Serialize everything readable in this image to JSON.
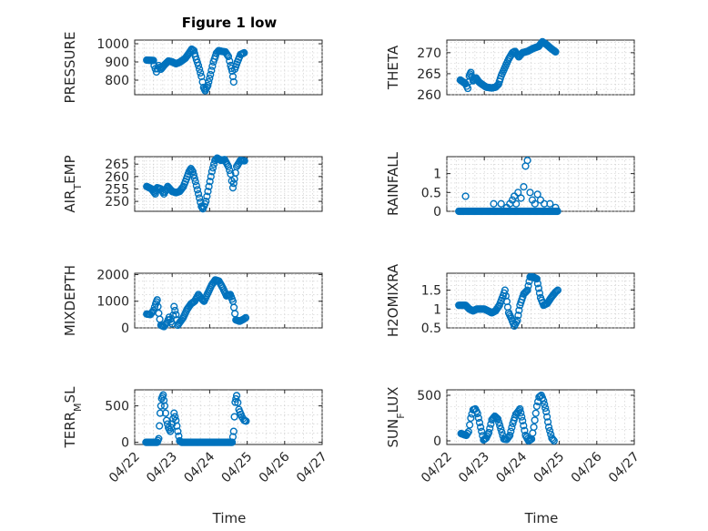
{
  "figure": {
    "title": "Figure 1 low",
    "xlabel": "Time"
  },
  "colors": {
    "marker": "#0072BD",
    "axes": "#262626",
    "grid": "#c8c8c8"
  },
  "chart_data": [
    {
      "type": "scatter",
      "ylabel": "PRESSURE",
      "title": "Figure 1 low",
      "ylim": [
        720,
        1020
      ],
      "yticks": [
        800,
        900,
        1000
      ],
      "yticklabels": [
        "800",
        "900",
        "1000"
      ],
      "xlim": [
        0,
        5
      ],
      "xticks": [
        0,
        1,
        2,
        3,
        4,
        5
      ],
      "xticklabels": [
        "04/22",
        "04/23",
        "04/24",
        "04/25",
        "04/26",
        "04/27"
      ],
      "grid": true,
      "keys": [
        [
          0.32,
          910
        ],
        [
          0.5,
          908
        ],
        [
          0.52,
          880
        ],
        [
          0.58,
          845
        ],
        [
          0.64,
          880
        ],
        [
          0.7,
          860
        ],
        [
          0.8,
          885
        ],
        [
          0.9,
          905
        ],
        [
          1.0,
          900
        ],
        [
          1.1,
          890
        ],
        [
          1.2,
          898
        ],
        [
          1.35,
          920
        ],
        [
          1.45,
          948
        ],
        [
          1.52,
          970
        ],
        [
          1.58,
          962
        ],
        [
          1.62,
          930
        ],
        [
          1.7,
          880
        ],
        [
          1.78,
          820
        ],
        [
          1.84,
          760
        ],
        [
          1.88,
          742
        ],
        [
          1.95,
          770
        ],
        [
          2.02,
          830
        ],
        [
          2.1,
          900
        ],
        [
          2.18,
          948
        ],
        [
          2.24,
          962
        ],
        [
          2.32,
          958
        ],
        [
          2.42,
          955
        ],
        [
          2.5,
          930
        ],
        [
          2.56,
          880
        ],
        [
          2.6,
          850
        ],
        [
          2.64,
          790
        ],
        [
          2.67,
          860
        ],
        [
          2.74,
          900
        ],
        [
          2.82,
          940
        ],
        [
          2.92,
          950
        ]
      ]
    },
    {
      "type": "scatter",
      "ylabel": "THETA",
      "ylim": [
        260,
        273
      ],
      "yticks": [
        260,
        265,
        270
      ],
      "yticklabels": [
        "260",
        "265",
        "270"
      ],
      "xlim": [
        0,
        5
      ],
      "xticks": [
        0,
        1,
        2,
        3,
        4,
        5
      ],
      "xticklabels": [
        "04/22",
        "04/23",
        "04/24",
        "04/25",
        "04/26",
        "04/27"
      ],
      "grid": true,
      "keys": [
        [
          0.36,
          263.5
        ],
        [
          0.5,
          262.6
        ],
        [
          0.56,
          261.5
        ],
        [
          0.6,
          264.5
        ],
        [
          0.64,
          265.3
        ],
        [
          0.7,
          263.3
        ],
        [
          0.78,
          264
        ],
        [
          0.86,
          263
        ],
        [
          0.95,
          262.4
        ],
        [
          1.05,
          261.8
        ],
        [
          1.2,
          261.6
        ],
        [
          1.3,
          261.8
        ],
        [
          1.38,
          262.5
        ],
        [
          1.45,
          264.5
        ],
        [
          1.55,
          266.5
        ],
        [
          1.65,
          268.5
        ],
        [
          1.75,
          270
        ],
        [
          1.82,
          270.3
        ],
        [
          1.92,
          269
        ],
        [
          2.02,
          270
        ],
        [
          2.15,
          270.3
        ],
        [
          2.3,
          271
        ],
        [
          2.45,
          271.5
        ],
        [
          2.55,
          272.6
        ],
        [
          2.65,
          272
        ],
        [
          2.78,
          271
        ],
        [
          2.9,
          270.2
        ]
      ]
    },
    {
      "type": "scatter",
      "ylabel": "AIR_TEMP",
      "ylim": [
        246,
        268
      ],
      "yticks": [
        250,
        255,
        260,
        265
      ],
      "yticklabels": [
        "250",
        "255",
        "260",
        "265"
      ],
      "xlim": [
        0,
        5
      ],
      "xticks": [
        0,
        1,
        2,
        3,
        4,
        5
      ],
      "xticklabels": [
        "04/22",
        "04/23",
        "04/24",
        "04/25",
        "04/26",
        "04/27"
      ],
      "grid": true,
      "keys": [
        [
          0.32,
          256
        ],
        [
          0.45,
          255
        ],
        [
          0.5,
          254
        ],
        [
          0.55,
          253
        ],
        [
          0.6,
          255.5
        ],
        [
          0.7,
          255
        ],
        [
          0.78,
          253
        ],
        [
          0.88,
          256
        ],
        [
          1.0,
          254
        ],
        [
          1.1,
          253.5
        ],
        [
          1.2,
          254
        ],
        [
          1.3,
          256
        ],
        [
          1.38,
          259
        ],
        [
          1.45,
          262
        ],
        [
          1.5,
          263.2
        ],
        [
          1.55,
          262
        ],
        [
          1.62,
          258
        ],
        [
          1.7,
          253
        ],
        [
          1.78,
          248
        ],
        [
          1.82,
          247
        ],
        [
          1.9,
          250
        ],
        [
          1.98,
          256
        ],
        [
          2.06,
          262
        ],
        [
          2.14,
          266.5
        ],
        [
          2.2,
          267.4
        ],
        [
          2.3,
          266.5
        ],
        [
          2.4,
          266.8
        ],
        [
          2.5,
          264
        ],
        [
          2.56,
          261
        ],
        [
          2.62,
          255.5
        ],
        [
          2.66,
          259
        ],
        [
          2.72,
          264
        ],
        [
          2.82,
          266.5
        ],
        [
          2.93,
          266.3
        ]
      ]
    },
    {
      "type": "scatter",
      "ylabel": "RAINFALL",
      "ylim": [
        0,
        1.45
      ],
      "yticks": [
        0,
        0.5,
        1
      ],
      "yticklabels": [
        "0",
        "0.5",
        "1"
      ],
      "xlim": [
        0,
        5
      ],
      "xticks": [
        0,
        1,
        2,
        3,
        4,
        5
      ],
      "xticklabels": [
        "04/22",
        "04/23",
        "04/24",
        "04/25",
        "04/26",
        "04/27"
      ],
      "grid": true,
      "spikes": [
        [
          0.5,
          0.4
        ],
        [
          1.25,
          0.2
        ],
        [
          1.45,
          0.2
        ],
        [
          1.6,
          0.1
        ],
        [
          1.68,
          0.2
        ],
        [
          1.75,
          0.3
        ],
        [
          1.8,
          0.4
        ],
        [
          1.85,
          0.2
        ],
        [
          1.9,
          0.5
        ],
        [
          1.98,
          0.35
        ],
        [
          2.05,
          0.65
        ],
        [
          2.1,
          1.2
        ],
        [
          2.15,
          1.35
        ],
        [
          2.22,
          0.5
        ],
        [
          2.28,
          0.3
        ],
        [
          2.35,
          0.2
        ],
        [
          2.42,
          0.45
        ],
        [
          2.5,
          0.3
        ],
        [
          2.6,
          0.2
        ],
        [
          2.75,
          0.2
        ],
        [
          2.9,
          0.1
        ]
      ]
    },
    {
      "type": "scatter",
      "ylabel": "MIXDEPTH",
      "ylim": [
        0,
        2050
      ],
      "yticks": [
        0,
        1000,
        2000
      ],
      "yticklabels": [
        "0",
        "1000",
        "2000"
      ],
      "xlim": [
        0,
        5
      ],
      "xticks": [
        0,
        1,
        2,
        3,
        4,
        5
      ],
      "xticklabels": [
        "04/22",
        "04/23",
        "04/24",
        "04/25",
        "04/26",
        "04/27"
      ],
      "grid": true,
      "keys": [
        [
          0.32,
          520
        ],
        [
          0.42,
          500
        ],
        [
          0.5,
          650
        ],
        [
          0.56,
          900
        ],
        [
          0.6,
          1050
        ],
        [
          0.64,
          550
        ],
        [
          0.7,
          100
        ],
        [
          0.78,
          50
        ],
        [
          0.86,
          200
        ],
        [
          0.92,
          400
        ],
        [
          1.0,
          150
        ],
        [
          1.05,
          800
        ],
        [
          1.1,
          500
        ],
        [
          1.15,
          100
        ],
        [
          1.2,
          200
        ],
        [
          1.3,
          400
        ],
        [
          1.4,
          700
        ],
        [
          1.5,
          900
        ],
        [
          1.6,
          1000
        ],
        [
          1.7,
          1250
        ],
        [
          1.78,
          1100
        ],
        [
          1.85,
          1000
        ],
        [
          1.95,
          1300
        ],
        [
          2.05,
          1600
        ],
        [
          2.15,
          1800
        ],
        [
          2.25,
          1750
        ],
        [
          2.35,
          1500
        ],
        [
          2.45,
          1200
        ],
        [
          2.55,
          1250
        ],
        [
          2.62,
          1000
        ],
        [
          2.7,
          300
        ],
        [
          2.8,
          250
        ],
        [
          2.9,
          320
        ],
        [
          2.96,
          380
        ]
      ]
    },
    {
      "type": "scatter",
      "ylabel": "H2OMIXRA",
      "ylim": [
        0.5,
        1.95
      ],
      "yticks": [
        0.5,
        1,
        1.5
      ],
      "yticklabels": [
        "0.5",
        "1",
        "1.5"
      ],
      "xlim": [
        0,
        5
      ],
      "xticks": [
        0,
        1,
        2,
        3,
        4,
        5
      ],
      "xticklabels": [
        "04/22",
        "04/23",
        "04/24",
        "04/25",
        "04/26",
        "04/27"
      ],
      "grid": true,
      "keys": [
        [
          0.32,
          1.1
        ],
        [
          0.5,
          1.1
        ],
        [
          0.6,
          1.0
        ],
        [
          0.7,
          0.95
        ],
        [
          0.8,
          1.0
        ],
        [
          0.9,
          1.0
        ],
        [
          1.0,
          1.0
        ],
        [
          1.1,
          0.95
        ],
        [
          1.2,
          0.9
        ],
        [
          1.3,
          0.95
        ],
        [
          1.4,
          1.1
        ],
        [
          1.5,
          1.35
        ],
        [
          1.55,
          1.5
        ],
        [
          1.6,
          1.2
        ],
        [
          1.65,
          0.9
        ],
        [
          1.72,
          0.75
        ],
        [
          1.8,
          0.55
        ],
        [
          1.88,
          0.7
        ],
        [
          1.95,
          1.1
        ],
        [
          2.05,
          1.4
        ],
        [
          2.15,
          1.5
        ],
        [
          2.22,
          1.85
        ],
        [
          2.3,
          1.85
        ],
        [
          2.4,
          1.8
        ],
        [
          2.5,
          1.3
        ],
        [
          2.58,
          1.1
        ],
        [
          2.68,
          1.15
        ],
        [
          2.78,
          1.3
        ],
        [
          2.9,
          1.45
        ],
        [
          2.96,
          1.5
        ]
      ]
    },
    {
      "type": "scatter",
      "ylabel": "TERR_MSL",
      "ylim": [
        -30,
        720
      ],
      "yticks": [
        0,
        500
      ],
      "yticklabels": [
        "0",
        "500"
      ],
      "xlim": [
        0,
        5
      ],
      "xticks": [
        0,
        1,
        2,
        3,
        4,
        5
      ],
      "xticklabels": [
        "04/22",
        "04/23",
        "04/24",
        "04/25",
        "04/26",
        "04/27"
      ],
      "grid": true,
      "keys": [
        [
          0.3,
          0
        ],
        [
          0.6,
          0
        ],
        [
          0.64,
          50
        ],
        [
          0.68,
          400
        ],
        [
          0.72,
          600
        ],
        [
          0.76,
          650
        ],
        [
          0.8,
          500
        ],
        [
          0.85,
          300
        ],
        [
          0.9,
          200
        ],
        [
          0.95,
          150
        ],
        [
          1.0,
          250
        ],
        [
          1.05,
          400
        ],
        [
          1.1,
          300
        ],
        [
          1.15,
          150
        ],
        [
          1.2,
          20
        ],
        [
          1.25,
          0
        ],
        [
          2.6,
          0
        ],
        [
          2.64,
          150
        ],
        [
          2.68,
          550
        ],
        [
          2.72,
          640
        ],
        [
          2.78,
          450
        ],
        [
          2.86,
          350
        ],
        [
          2.92,
          300
        ],
        [
          2.97,
          290
        ]
      ]
    },
    {
      "type": "scatter",
      "ylabel": "SUN_FLUX",
      "ylim": [
        -40,
        560
      ],
      "yticks": [
        0,
        500
      ],
      "yticklabels": [
        "0",
        "500"
      ],
      "xlim": [
        0,
        5
      ],
      "xticks": [
        0,
        1,
        2,
        3,
        4,
        5
      ],
      "xticklabels": [
        "04/22",
        "04/23",
        "04/24",
        "04/25",
        "04/26",
        "04/27"
      ],
      "grid": true,
      "keys": [
        [
          0.38,
          80
        ],
        [
          0.45,
          70
        ],
        [
          0.52,
          60
        ],
        [
          0.58,
          100
        ],
        [
          0.64,
          250
        ],
        [
          0.7,
          340
        ],
        [
          0.76,
          350
        ],
        [
          0.82,
          300
        ],
        [
          0.9,
          150
        ],
        [
          0.98,
          10
        ],
        [
          1.05,
          30
        ],
        [
          1.12,
          90
        ],
        [
          1.2,
          230
        ],
        [
          1.28,
          270
        ],
        [
          1.36,
          240
        ],
        [
          1.44,
          130
        ],
        [
          1.52,
          20
        ],
        [
          1.6,
          15
        ],
        [
          1.68,
          60
        ],
        [
          1.76,
          190
        ],
        [
          1.84,
          290
        ],
        [
          1.9,
          320
        ],
        [
          1.95,
          350
        ],
        [
          2.02,
          220
        ],
        [
          2.1,
          60
        ],
        [
          2.18,
          0
        ],
        [
          2.26,
          20
        ],
        [
          2.32,
          150
        ],
        [
          2.4,
          380
        ],
        [
          2.46,
          480
        ],
        [
          2.52,
          500
        ],
        [
          2.58,
          440
        ],
        [
          2.65,
          320
        ],
        [
          2.72,
          150
        ],
        [
          2.8,
          30
        ],
        [
          2.86,
          0
        ]
      ]
    }
  ]
}
